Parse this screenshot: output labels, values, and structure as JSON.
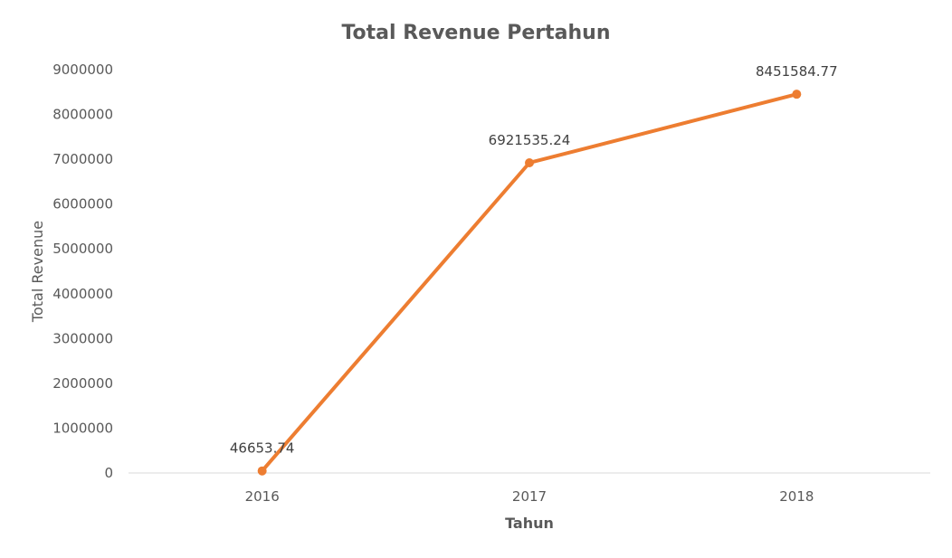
{
  "chart_data": {
    "type": "line",
    "title": "Total Revenue Pertahun",
    "xlabel": "Tahun",
    "ylabel": "Total Revenue",
    "categories": [
      "2016",
      "2017",
      "2018"
    ],
    "series": [
      {
        "values": [
          46653.74,
          6921535.24,
          8451584.77
        ],
        "data_labels": [
          "46653.74",
          "6921535.24",
          "8451584.77"
        ],
        "color": "#ED7D31"
      }
    ],
    "ylim": [
      0,
      9000000
    ],
    "yticks": [
      "0",
      "1000000",
      "2000000",
      "3000000",
      "4000000",
      "5000000",
      "6000000",
      "7000000",
      "8000000",
      "9000000"
    ],
    "grid": false,
    "legend": "none"
  }
}
